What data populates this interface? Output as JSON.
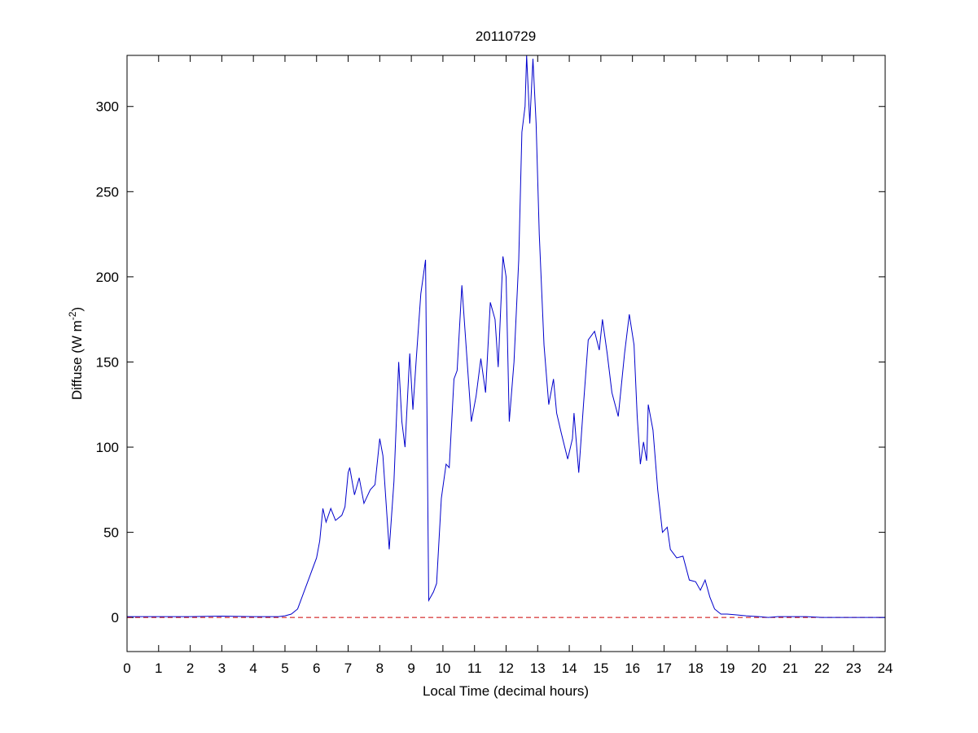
{
  "chart_data": {
    "type": "line",
    "title": "20110729",
    "xlabel": "Local Time (decimal hours)",
    "ylabel": {
      "text": "Diffuse (W m",
      "superscript": "-2",
      "close": ")"
    },
    "x": [
      0,
      1,
      2,
      3,
      4,
      4.8,
      5,
      5.2,
      5.4,
      5.6,
      5.8,
      6.0,
      6.1,
      6.2,
      6.3,
      6.45,
      6.6,
      6.8,
      6.9,
      7.0,
      7.05,
      7.2,
      7.35,
      7.5,
      7.7,
      7.85,
      8.0,
      8.1,
      8.3,
      8.45,
      8.6,
      8.7,
      8.8,
      8.95,
      9.05,
      9.15,
      9.3,
      9.45,
      9.55,
      9.7,
      9.8,
      9.95,
      10.1,
      10.2,
      10.35,
      10.45,
      10.6,
      10.75,
      10.9,
      11.05,
      11.2,
      11.35,
      11.5,
      11.65,
      11.75,
      11.9,
      12.0,
      12.1,
      12.25,
      12.4,
      12.5,
      12.6,
      12.65,
      12.75,
      12.85,
      12.95,
      13.05,
      13.2,
      13.35,
      13.5,
      13.6,
      13.75,
      13.95,
      14.1,
      14.15,
      14.3,
      14.45,
      14.6,
      14.8,
      14.95,
      15.05,
      15.2,
      15.35,
      15.55,
      15.75,
      15.9,
      16.05,
      16.15,
      16.25,
      16.35,
      16.45,
      16.5,
      16.65,
      16.8,
      16.95,
      17.1,
      17.2,
      17.4,
      17.6,
      17.8,
      18.0,
      18.15,
      18.3,
      18.45,
      18.6,
      18.8,
      19.0,
      19.3,
      19.6,
      20.0,
      20.3,
      20.6,
      21.0,
      21.5,
      22,
      23,
      24
    ],
    "series": [
      {
        "name": "Diffuse",
        "color": "#0000cc",
        "values": [
          0.5,
          0.5,
          0.5,
          0.8,
          0.5,
          0.5,
          1,
          2,
          5,
          15,
          25,
          35,
          45,
          64,
          56,
          64,
          57,
          60,
          65,
          85,
          88,
          72,
          82,
          67,
          75,
          78,
          105,
          95,
          40,
          80,
          150,
          115,
          100,
          155,
          122,
          150,
          190,
          210,
          10,
          15,
          20,
          70,
          90,
          88,
          140,
          145,
          195,
          155,
          115,
          130,
          152,
          132,
          185,
          175,
          147,
          212,
          200,
          115,
          150,
          210,
          285,
          300,
          330,
          290,
          328,
          290,
          225,
          160,
          125,
          140,
          120,
          108,
          93,
          105,
          120,
          85,
          125,
          163,
          168,
          157,
          175,
          155,
          132,
          118,
          155,
          178,
          160,
          118,
          90,
          103,
          92,
          125,
          110,
          75,
          50,
          53,
          40,
          35,
          36,
          22,
          21,
          16,
          22,
          12,
          5,
          2,
          2,
          1.5,
          1,
          0.5,
          0,
          0.5,
          0.5,
          0.5,
          0,
          0,
          0
        ]
      }
    ],
    "reference_line": {
      "value": 0,
      "color": "#cc0000",
      "style": "dashed"
    },
    "xlim": [
      0,
      24
    ],
    "xticks": [
      0,
      1,
      2,
      3,
      4,
      5,
      6,
      7,
      8,
      9,
      10,
      11,
      12,
      13,
      14,
      15,
      16,
      17,
      18,
      19,
      20,
      21,
      22,
      23,
      24
    ],
    "ylim": [
      -20,
      330
    ],
    "yticks": [
      0,
      50,
      100,
      150,
      200,
      250,
      300
    ]
  }
}
